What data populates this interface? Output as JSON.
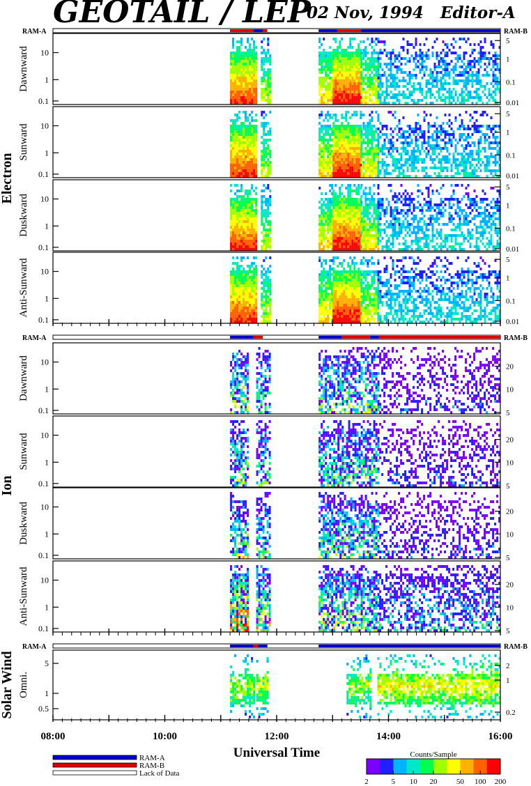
{
  "header": {
    "title": "GEOTAIL / LEP",
    "date_editor": "02 Nov, 1994   Editor-A"
  },
  "groups": [
    {
      "name": "Electron",
      "ram_left": "RAM-A",
      "ram_right": "RAM-B"
    },
    {
      "name": "Ion",
      "ram_left": "RAM-A",
      "ram_right": "RAM-B"
    },
    {
      "name": "Solar Wind",
      "ram_left": "RAM-A",
      "ram_right": "RAM-B"
    }
  ],
  "legend": {
    "items": [
      {
        "label": "RAM-A",
        "color": "#0000cc"
      },
      {
        "label": "RAM-B",
        "color": "#dd0000"
      },
      {
        "label": "Lack of Data",
        "color": "#ffffff"
      }
    ]
  },
  "colorbar": {
    "title": "Counts/Sample",
    "ticks": [
      "2",
      "5",
      "10",
      "20",
      "50",
      "100",
      "200"
    ]
  },
  "colors": {
    "ram_a": "#0000cc",
    "ram_b": "#dd0000",
    "scale": [
      "#7b00ff",
      "#2020ff",
      "#00b4ff",
      "#00e8c8",
      "#00ff50",
      "#a0ff00",
      "#ffff00",
      "#ffb000",
      "#ff6000",
      "#ff0000"
    ]
  },
  "chart_data": {
    "type": "heatmap",
    "xlabel": "Universal Time",
    "x_ticks": [
      "08:00",
      "10:00",
      "12:00",
      "14:00",
      "16:00"
    ],
    "xlim": [
      "08:00",
      "16:00"
    ],
    "panels": [
      {
        "group": "Electron",
        "label": "Dawnward",
        "left_ticks": [
          "10",
          "1",
          "0.1"
        ],
        "right_ticks": [
          "5",
          "1",
          "0.1",
          "0.01"
        ]
      },
      {
        "group": "Electron",
        "label": "Sunward",
        "left_ticks": [
          "10",
          "1",
          "0.1"
        ],
        "right_ticks": [
          "5",
          "1",
          "0.1",
          "0.01"
        ]
      },
      {
        "group": "Electron",
        "label": "Duskward",
        "left_ticks": [
          "10",
          "1",
          "0.1"
        ],
        "right_ticks": [
          "5",
          "1",
          "0.1",
          "0.01"
        ]
      },
      {
        "group": "Electron",
        "label": "Anti-Sunward",
        "left_ticks": [
          "10",
          "1",
          "0.1"
        ],
        "right_ticks": [
          "5",
          "1",
          "0.1",
          "0.01"
        ]
      },
      {
        "group": "Ion",
        "label": "Dawnward",
        "left_ticks": [
          "10",
          "1",
          "0.1"
        ],
        "right_ticks": [
          "20",
          "10",
          "5"
        ]
      },
      {
        "group": "Ion",
        "label": "Sunward",
        "left_ticks": [
          "10",
          "1",
          "0.1"
        ],
        "right_ticks": [
          "20",
          "10",
          "5"
        ]
      },
      {
        "group": "Ion",
        "label": "Duskward",
        "left_ticks": [
          "10",
          "1",
          "0.1"
        ],
        "right_ticks": [
          "20",
          "10",
          "5"
        ]
      },
      {
        "group": "Ion",
        "label": "Anti-Sunward",
        "left_ticks": [
          "10",
          "1",
          "0.1"
        ],
        "right_ticks": [
          "20",
          "10",
          "5"
        ]
      },
      {
        "group": "Solar Wind",
        "label": "Omni.",
        "left_ticks": [
          "5",
          "1",
          "0.5"
        ],
        "right_ticks": [
          "2",
          "1",
          "0.2"
        ]
      }
    ],
    "ram_bars": [
      {
        "group": "Electron",
        "segments": [
          [
            "11:10",
            "11:35",
            "ram_b"
          ],
          [
            "11:35",
            "11:45",
            "ram_a"
          ],
          [
            "11:45",
            "11:50",
            "ram_b"
          ],
          [
            "12:45",
            "13:05",
            "ram_a"
          ],
          [
            "13:05",
            "13:30",
            "ram_b"
          ],
          [
            "13:30",
            "16:00",
            "ram_a"
          ]
        ]
      },
      {
        "group": "Ion",
        "segments": [
          [
            "11:10",
            "11:35",
            "ram_a"
          ],
          [
            "11:35",
            "11:45",
            "ram_b"
          ],
          [
            "12:45",
            "13:10",
            "ram_a"
          ],
          [
            "13:10",
            "13:40",
            "ram_b"
          ],
          [
            "13:40",
            "13:50",
            "ram_a"
          ],
          [
            "13:50",
            "16:00",
            "ram_b"
          ]
        ]
      },
      {
        "group": "Solar Wind",
        "segments": [
          [
            "11:10",
            "11:35",
            "ram_a"
          ],
          [
            "11:35",
            "11:40",
            "ram_b"
          ],
          [
            "11:40",
            "11:50",
            "ram_a"
          ],
          [
            "12:45",
            "16:00",
            "ram_a"
          ]
        ]
      }
    ]
  }
}
